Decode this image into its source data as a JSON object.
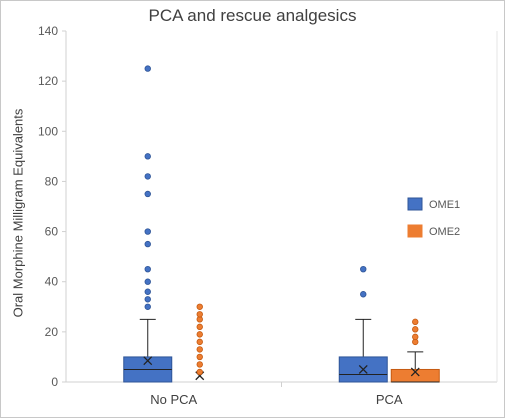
{
  "chart_data": {
    "type": "box",
    "title": "PCA and rescue analgesics",
    "xlabel": "",
    "ylabel": "Oral Morphine Milligram Equivalents",
    "ylim": [
      0,
      140
    ],
    "yticks": [
      0,
      20,
      40,
      60,
      80,
      100,
      120,
      140
    ],
    "categories": [
      "No PCA",
      "PCA"
    ],
    "legend_position": "right",
    "series": [
      {
        "name": "OME1",
        "color": "#4472c4",
        "boxes": [
          {
            "category": "No PCA",
            "min": 0,
            "q1": 0,
            "median": 5,
            "q3": 10,
            "max": 25,
            "mean": 8.5,
            "outliers": [
              30,
              33,
              36,
              40,
              45,
              55,
              60,
              75,
              82,
              90,
              125
            ]
          },
          {
            "category": "PCA",
            "min": 0,
            "q1": 0,
            "median": 3,
            "q3": 10,
            "max": 25,
            "mean": 5,
            "outliers": [
              35,
              45
            ]
          }
        ]
      },
      {
        "name": "OME2",
        "color": "#ed7d31",
        "boxes": [
          {
            "category": "No PCA",
            "min": 0,
            "q1": 0,
            "median": 0,
            "q3": 0,
            "max": 0,
            "mean": 2.5,
            "outliers": [
              4,
              7,
              10,
              13,
              16,
              19,
              22,
              25,
              27,
              30
            ]
          },
          {
            "category": "PCA",
            "min": 0,
            "q1": 0,
            "median": 0,
            "q3": 5,
            "max": 12,
            "mean": 4,
            "outliers": [
              16,
              18,
              21,
              24
            ]
          }
        ]
      }
    ]
  }
}
